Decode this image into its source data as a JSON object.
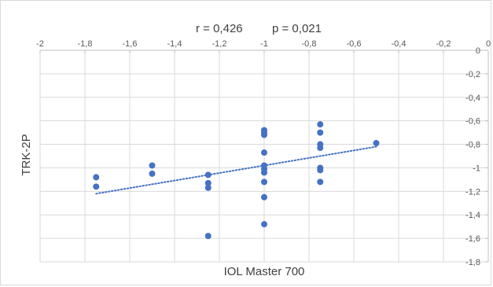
{
  "chart_data": {
    "type": "scatter",
    "stats": {
      "r": "r = 0,426",
      "p": "p = 0,021"
    },
    "xlabel": "IOL Master 700",
    "ylabel": "TRK-2P",
    "xlim": [
      -2,
      0
    ],
    "ylim": [
      -1.8,
      0
    ],
    "x_ticks": [
      "-2",
      "-1,8",
      "-1,6",
      "-1,4",
      "-1,2",
      "-1",
      "-0,8",
      "-0,6",
      "-0,4",
      "-0,2",
      "0"
    ],
    "y_ticks": [
      "0",
      "-0,2",
      "-0,4",
      "-0,6",
      "-0,8",
      "-1",
      "-1,2",
      "-1,4",
      "-1,6",
      "-1,8"
    ],
    "x_tick_values": [
      -2,
      -1.8,
      -1.6,
      -1.4,
      -1.2,
      -1,
      -0.8,
      -0.6,
      -0.4,
      -0.2,
      0
    ],
    "y_tick_values": [
      0,
      -0.2,
      -0.4,
      -0.6,
      -0.8,
      -1,
      -1.2,
      -1.4,
      -1.6,
      -1.8
    ],
    "grid": true,
    "marker_color": "#4472c4",
    "trendline": {
      "style": "dotted",
      "color": "#4472c4",
      "x": [
        -1.75,
        -0.5
      ],
      "y": [
        -1.22,
        -0.82
      ]
    },
    "points": [
      {
        "x": -1.75,
        "y": -1.08
      },
      {
        "x": -1.75,
        "y": -1.16
      },
      {
        "x": -1.5,
        "y": -0.98
      },
      {
        "x": -1.5,
        "y": -1.05
      },
      {
        "x": -1.25,
        "y": -1.06
      },
      {
        "x": -1.25,
        "y": -1.13
      },
      {
        "x": -1.25,
        "y": -1.17
      },
      {
        "x": -1.25,
        "y": -1.58
      },
      {
        "x": -1.0,
        "y": -0.68
      },
      {
        "x": -1.0,
        "y": -0.7
      },
      {
        "x": -1.0,
        "y": -0.72
      },
      {
        "x": -1.0,
        "y": -0.87
      },
      {
        "x": -1.0,
        "y": -0.98
      },
      {
        "x": -1.0,
        "y": -1.01
      },
      {
        "x": -1.0,
        "y": -1.04
      },
      {
        "x": -1.0,
        "y": -1.12
      },
      {
        "x": -1.0,
        "y": -1.25
      },
      {
        "x": -1.0,
        "y": -1.48
      },
      {
        "x": -0.75,
        "y": -0.63
      },
      {
        "x": -0.75,
        "y": -0.7
      },
      {
        "x": -0.75,
        "y": -0.8
      },
      {
        "x": -0.75,
        "y": -0.83
      },
      {
        "x": -0.75,
        "y": -1.0
      },
      {
        "x": -0.75,
        "y": -1.02
      },
      {
        "x": -0.75,
        "y": -1.12
      },
      {
        "x": -0.5,
        "y": -0.79
      }
    ]
  }
}
